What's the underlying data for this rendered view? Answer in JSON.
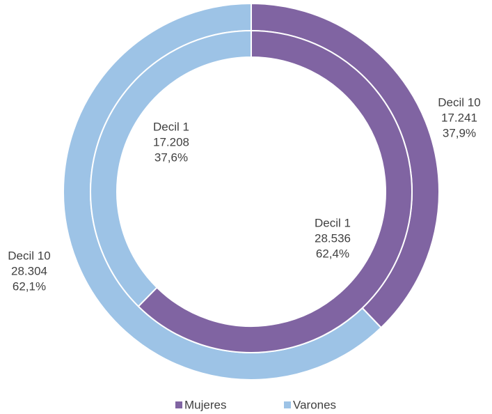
{
  "chart_data": {
    "type": "donut",
    "categories": [
      "Mujeres",
      "Varones"
    ],
    "colors": [
      "#8064a2",
      "#9dc3e6"
    ],
    "rings": [
      {
        "name": "Decil 10",
        "values": [
          17241,
          28304
        ],
        "value_labels": [
          "17.241",
          "28.304"
        ],
        "percents": [
          37.9,
          62.1
        ],
        "percent_labels": [
          "37,9%",
          "62,1%"
        ]
      },
      {
        "name": "Decil 1",
        "values": [
          28536,
          17208
        ],
        "value_labels": [
          "28.536",
          "17.208"
        ],
        "percents": [
          62.4,
          37.6
        ],
        "percent_labels": [
          "62,4%",
          "37,6%"
        ]
      }
    ],
    "legend": "bottom"
  }
}
